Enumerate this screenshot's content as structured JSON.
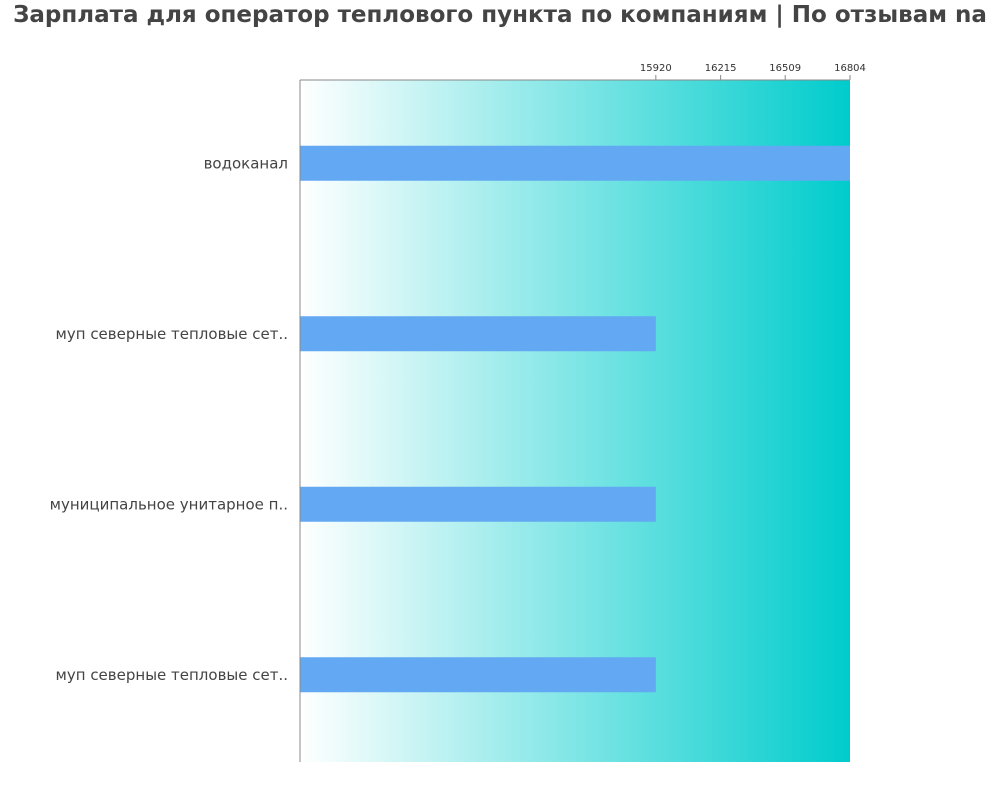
{
  "chart_data": {
    "type": "bar",
    "orientation": "horizontal",
    "title": "Зарплата для оператор теплового пункта по компаниям  | По отзывам na",
    "categories": [
      "водоканал",
      "муп северные тепловые сет..",
      "муниципальное унитарное п..",
      "муп северные тепловые сет.."
    ],
    "values": [
      16804,
      15920,
      15920,
      15920
    ],
    "xticks": [
      15920,
      16215,
      16509,
      16804
    ],
    "xlim": [
      14300,
      16804
    ],
    "tick_position": "top",
    "grid": false,
    "legend": "none",
    "colors": {
      "bar": "#63a8f2",
      "background_start": "#ffffff",
      "background_end": "#00cccc",
      "axis": "#888888",
      "title": "#444444",
      "label": "#444444"
    }
  }
}
